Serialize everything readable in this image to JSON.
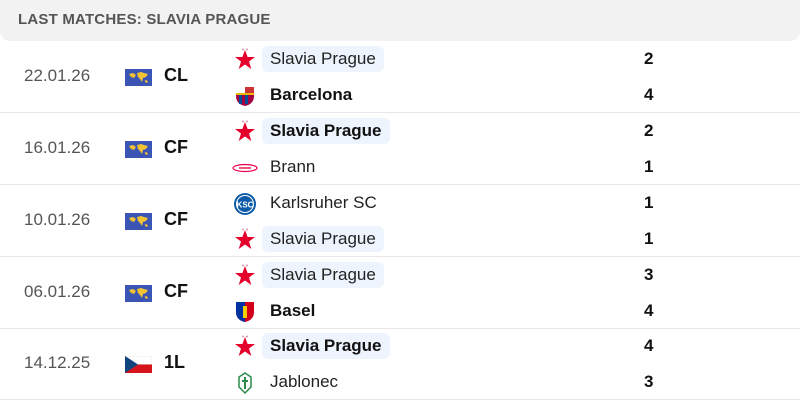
{
  "header": {
    "title": "LAST MATCHES: SLAVIA PRAGUE"
  },
  "colors": {
    "highlight": "#edf4fd",
    "slavia_red": "#e4002b"
  },
  "matches": [
    {
      "date": "22.01.26",
      "competition": "CL",
      "comp_icon": "world-flag-icon",
      "home": {
        "name": "Slavia Prague",
        "logo": "slavia-star",
        "score": "2",
        "winner": false,
        "highlight": true
      },
      "away": {
        "name": "Barcelona",
        "logo": "barcelona-crest",
        "score": "4",
        "winner": true,
        "highlight": false
      }
    },
    {
      "date": "16.01.26",
      "competition": "CF",
      "comp_icon": "world-flag-icon",
      "home": {
        "name": "Slavia Prague",
        "logo": "slavia-star",
        "score": "2",
        "winner": true,
        "highlight": true
      },
      "away": {
        "name": "Brann",
        "logo": "brann-crest",
        "score": "1",
        "winner": false,
        "highlight": false
      }
    },
    {
      "date": "10.01.26",
      "competition": "CF",
      "comp_icon": "world-flag-icon",
      "home": {
        "name": "Karlsruher SC",
        "logo": "ksc-crest",
        "score": "1",
        "winner": false,
        "highlight": false
      },
      "away": {
        "name": "Slavia Prague",
        "logo": "slavia-star",
        "score": "1",
        "winner": false,
        "highlight": true
      }
    },
    {
      "date": "06.01.26",
      "competition": "CF",
      "comp_icon": "world-flag-icon",
      "home": {
        "name": "Slavia Prague",
        "logo": "slavia-star",
        "score": "3",
        "winner": false,
        "highlight": true
      },
      "away": {
        "name": "Basel",
        "logo": "basel-crest",
        "score": "4",
        "winner": true,
        "highlight": false
      }
    },
    {
      "date": "14.12.25",
      "competition": "1L",
      "comp_icon": "czech-flag-icon",
      "home": {
        "name": "Slavia Prague",
        "logo": "slavia-star",
        "score": "4",
        "winner": true,
        "highlight": true
      },
      "away": {
        "name": "Jablonec",
        "logo": "jablonec-crest",
        "score": "3",
        "winner": false,
        "highlight": false
      }
    }
  ]
}
